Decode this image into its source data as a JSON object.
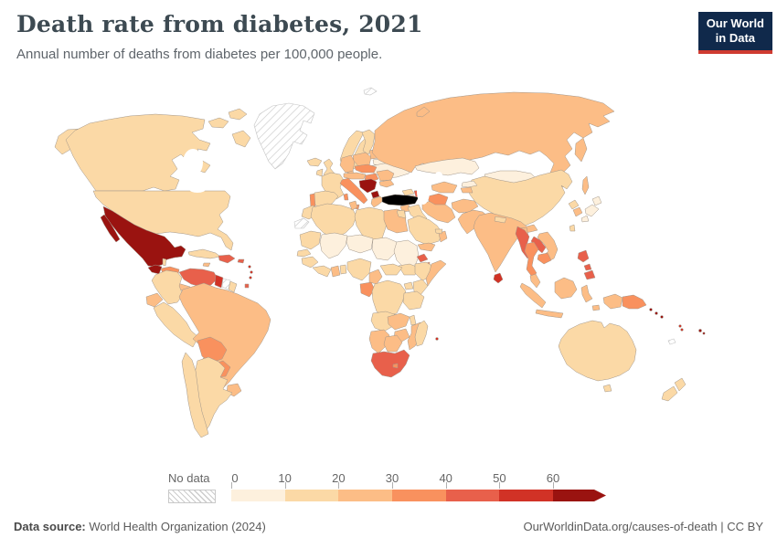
{
  "header": {
    "title": "Death rate from diabetes, 2021",
    "subtitle": "Annual number of deaths from diabetes per 100,000 people."
  },
  "logo": {
    "line1": "Our World",
    "line2": "in Data",
    "bg_color": "#10294b",
    "accent_color": "#cf3b31"
  },
  "legend": {
    "no_data_label": "No data",
    "ticks": [
      "0",
      "10",
      "20",
      "30",
      "40",
      "50",
      "60"
    ],
    "buckets": [
      {
        "range": "0-10",
        "color": "#fdf0dd"
      },
      {
        "range": "10-20",
        "color": "#fbd9a6"
      },
      {
        "range": "20-30",
        "color": "#fcbd86"
      },
      {
        "range": "30-40",
        "color": "#f9915e"
      },
      {
        "range": "40-50",
        "color": "#e8604b"
      },
      {
        "range": "50-60",
        "color": "#d13226"
      },
      {
        "range": "60+",
        "color": "#9a1310"
      }
    ]
  },
  "footer": {
    "source_label": "Data source:",
    "source_text": " World Health Organization (2024)",
    "right_text": "OurWorldinData.org/causes-of-death | CC BY"
  },
  "chart_data": {
    "type": "choropleth",
    "title": "Death rate from diabetes, 2021",
    "unit": "deaths per 100,000 people",
    "year": 2021,
    "legend_buckets": [
      "0-10",
      "10-20",
      "20-30",
      "30-40",
      "40-50",
      "50-60",
      "60+"
    ],
    "regions": [
      {
        "id": "canada",
        "name": "Canada",
        "bucket": "10-20"
      },
      {
        "id": "usa",
        "name": "United States",
        "bucket": "10-20"
      },
      {
        "id": "greenland",
        "name": "Greenland",
        "bucket": "no-data"
      },
      {
        "id": "iceland",
        "name": "Iceland",
        "bucket": "10-20"
      },
      {
        "id": "mexico",
        "name": "Mexico",
        "bucket": "60+"
      },
      {
        "id": "guatemala",
        "name": "Guatemala",
        "bucket": "60+"
      },
      {
        "id": "belize",
        "name": "Belize",
        "bucket": "10-20"
      },
      {
        "id": "honduras-nicaragua",
        "name": "Honduras & Nicaragua",
        "bucket": "30-40"
      },
      {
        "id": "costa-panama",
        "name": "Costa Rica & Panama",
        "bucket": "20-30"
      },
      {
        "id": "cuba",
        "name": "Cuba",
        "bucket": "10-20"
      },
      {
        "id": "jamaica",
        "name": "Jamaica",
        "bucket": "20-30"
      },
      {
        "id": "hispaniola",
        "name": "Haiti & Dominican Republic",
        "bucket": "40-50"
      },
      {
        "id": "puerto-rico",
        "name": "Puerto Rico",
        "bucket": "40-50"
      },
      {
        "id": "lesser-antilles",
        "name": "Lesser Antilles",
        "bucket": "50-60"
      },
      {
        "id": "trinidad",
        "name": "Trinidad and Tobago",
        "bucket": "40-50"
      },
      {
        "id": "colombia",
        "name": "Colombia",
        "bucket": "10-20"
      },
      {
        "id": "venezuela",
        "name": "Venezuela",
        "bucket": "40-50"
      },
      {
        "id": "guyana",
        "name": "Guyana",
        "bucket": "50-60"
      },
      {
        "id": "suriname",
        "name": "Suriname",
        "bucket": "no-data"
      },
      {
        "id": "french-guiana",
        "name": "French Guiana",
        "bucket": "10-20"
      },
      {
        "id": "ecuador",
        "name": "Ecuador",
        "bucket": "20-30"
      },
      {
        "id": "peru",
        "name": "Peru",
        "bucket": "10-20"
      },
      {
        "id": "brazil",
        "name": "Brazil",
        "bucket": "20-30"
      },
      {
        "id": "bolivia",
        "name": "Bolivia",
        "bucket": "30-40"
      },
      {
        "id": "paraguay",
        "name": "Paraguay",
        "bucket": "30-40"
      },
      {
        "id": "uruguay",
        "name": "Uruguay",
        "bucket": "20-30"
      },
      {
        "id": "chile",
        "name": "Chile",
        "bucket": "10-20"
      },
      {
        "id": "argentina",
        "name": "Argentina",
        "bucket": "10-20"
      },
      {
        "id": "uk",
        "name": "United Kingdom",
        "bucket": "10-20"
      },
      {
        "id": "ireland",
        "name": "Ireland",
        "bucket": "10-20"
      },
      {
        "id": "norway",
        "name": "Norway",
        "bucket": "10-20"
      },
      {
        "id": "sweden",
        "name": "Sweden",
        "bucket": "10-20"
      },
      {
        "id": "finland",
        "name": "Finland",
        "bucket": "10-20"
      },
      {
        "id": "denmark",
        "name": "Denmark",
        "bucket": "20-30"
      },
      {
        "id": "france",
        "name": "France",
        "bucket": "10-20"
      },
      {
        "id": "spain",
        "name": "Spain",
        "bucket": "10-20"
      },
      {
        "id": "portugal",
        "name": "Portugal",
        "bucket": "30-40"
      },
      {
        "id": "germany",
        "name": "Germany",
        "bucket": "20-30"
      },
      {
        "id": "poland",
        "name": "Poland",
        "bucket": "20-30"
      },
      {
        "id": "baltics",
        "name": "Baltic states",
        "bucket": "20-30"
      },
      {
        "id": "belarus",
        "name": "Belarus",
        "bucket": "0-10"
      },
      {
        "id": "ukraine",
        "name": "Ukraine",
        "bucket": "0-10"
      },
      {
        "id": "czech-slovakia",
        "name": "Czechia & Slovakia",
        "bucket": "30-40"
      },
      {
        "id": "austria-switzerland",
        "name": "Austria & Switzerland",
        "bucket": "20-30"
      },
      {
        "id": "hungary",
        "name": "Hungary",
        "bucket": "30-40"
      },
      {
        "id": "romania",
        "name": "Romania",
        "bucket": "20-30"
      },
      {
        "id": "bulgaria",
        "name": "Bulgaria",
        "bucket": "20-30"
      },
      {
        "id": "croatia-serbia",
        "name": "Croatia, Bosnia & Serbia",
        "bucket": "60+"
      },
      {
        "id": "albania-macedonia",
        "name": "Albania & North Macedonia",
        "bucket": "60+"
      },
      {
        "id": "greece",
        "name": "Greece",
        "bucket": "20-30"
      },
      {
        "id": "italy",
        "name": "Italy",
        "bucket": "30-40"
      },
      {
        "id": "svalbard",
        "name": "Svalbard",
        "bucket": "no-data"
      },
      {
        "id": "morocco",
        "name": "Morocco",
        "bucket": "10-20"
      },
      {
        "id": "western-sahara",
        "name": "Western Sahara",
        "bucket": "no-data"
      },
      {
        "id": "algeria",
        "name": "Algeria",
        "bucket": "10-20"
      },
      {
        "id": "tunisia",
        "name": "Tunisia",
        "bucket": "20-30"
      },
      {
        "id": "libya",
        "name": "Libya",
        "bucket": "10-20"
      },
      {
        "id": "egypt",
        "name": "Egypt",
        "bucket": "20-30"
      },
      {
        "id": "mauritania",
        "name": "Mauritania",
        "bucket": "10-20"
      },
      {
        "id": "mali",
        "name": "Mali",
        "bucket": "0-10"
      },
      {
        "id": "niger",
        "name": "Niger",
        "bucket": "0-10"
      },
      {
        "id": "chad",
        "name": "Chad",
        "bucket": "0-10"
      },
      {
        "id": "sudan",
        "name": "Sudan",
        "bucket": "0-10"
      },
      {
        "id": "south-sudan",
        "name": "South Sudan",
        "bucket": "10-20"
      },
      {
        "id": "eritrea",
        "name": "Eritrea",
        "bucket": "40-50"
      },
      {
        "id": "djibouti",
        "name": "Djibouti",
        "bucket": "30-40"
      },
      {
        "id": "ethiopia",
        "name": "Ethiopia",
        "bucket": "10-20"
      },
      {
        "id": "somalia",
        "name": "Somalia",
        "bucket": "20-30"
      },
      {
        "id": "senegal",
        "name": "Senegal & Gambia",
        "bucket": "10-20"
      },
      {
        "id": "guinea",
        "name": "Guinea",
        "bucket": "10-20"
      },
      {
        "id": "liberia-ivory",
        "name": "Liberia & Cote d'Ivoire",
        "bucket": "10-20"
      },
      {
        "id": "ghana",
        "name": "Ghana",
        "bucket": "20-30"
      },
      {
        "id": "togo-benin",
        "name": "Togo & Benin",
        "bucket": "10-20"
      },
      {
        "id": "nigeria",
        "name": "Nigeria",
        "bucket": "10-20"
      },
      {
        "id": "cameroon",
        "name": "Cameroon",
        "bucket": "20-30"
      },
      {
        "id": "car",
        "name": "Central African Republic",
        "bucket": "10-20"
      },
      {
        "id": "gabon-congo",
        "name": "Gabon & Congo",
        "bucket": "30-40"
      },
      {
        "id": "drc",
        "name": "Democratic Republic of Congo",
        "bucket": "10-20"
      },
      {
        "id": "uganda",
        "name": "Uganda",
        "bucket": "10-20"
      },
      {
        "id": "kenya",
        "name": "Kenya",
        "bucket": "10-20"
      },
      {
        "id": "tanzania",
        "name": "Tanzania",
        "bucket": "10-20"
      },
      {
        "id": "angola",
        "name": "Angola",
        "bucket": "10-20"
      },
      {
        "id": "zambia",
        "name": "Zambia",
        "bucket": "20-30"
      },
      {
        "id": "malawi",
        "name": "Malawi",
        "bucket": "10-20"
      },
      {
        "id": "mozambique",
        "name": "Mozambique",
        "bucket": "20-30"
      },
      {
        "id": "zimbabwe",
        "name": "Zimbabwe",
        "bucket": "20-30"
      },
      {
        "id": "namibia",
        "name": "Namibia",
        "bucket": "20-30"
      },
      {
        "id": "botswana",
        "name": "Botswana",
        "bucket": "20-30"
      },
      {
        "id": "south-africa",
        "name": "South Africa",
        "bucket": "40-50"
      },
      {
        "id": "lesotho",
        "name": "Lesotho",
        "bucket": "30-40"
      },
      {
        "id": "madagascar",
        "name": "Madagascar",
        "bucket": "10-20"
      },
      {
        "id": "mauritius",
        "name": "Mauritius",
        "bucket": "50-60"
      },
      {
        "id": "russia",
        "name": "Russia",
        "bucket": "20-30"
      },
      {
        "id": "kazakhstan",
        "name": "Kazakhstan",
        "bucket": "0-10"
      },
      {
        "id": "mongolia",
        "name": "Mongolia",
        "bucket": "0-10"
      },
      {
        "id": "china",
        "name": "China",
        "bucket": "10-20"
      },
      {
        "id": "taiwan",
        "name": "Taiwan",
        "bucket": "10-20"
      },
      {
        "id": "north-korea",
        "name": "North Korea",
        "bucket": "10-20"
      },
      {
        "id": "south-korea",
        "name": "South Korea",
        "bucket": "20-30"
      },
      {
        "id": "japan",
        "name": "Japan",
        "bucket": "0-10"
      },
      {
        "id": "georgia",
        "name": "Georgia",
        "bucket": "10-20"
      },
      {
        "id": "armenia",
        "name": "Armenia",
        "bucket": "20-30"
      },
      {
        "id": "azerbaijan",
        "name": "Azerbaijan",
        "bucket": "40-50"
      },
      {
        "id": "syria",
        "name": "Syria",
        "bucket": "20-30"
      },
      {
        "id": "israel-jordan",
        "name": "Israel & Jordan",
        "bucket": "10-20"
      },
      {
        "id": "iraq",
        "name": "Iraq",
        "bucket": "10-20"
      },
      {
        "id": "iran",
        "name": "Iran",
        "bucket": "20-30"
      },
      {
        "id": "saudi-arabia",
        "name": "Saudi Arabia",
        "bucket": "10-20"
      },
      {
        "id": "yemen",
        "name": "Yemen",
        "bucket": "20-30"
      },
      {
        "id": "oman",
        "name": "Oman",
        "bucket": "20-30"
      },
      {
        "id": "uae",
        "name": "United Arab Emirates",
        "bucket": "10-20"
      },
      {
        "id": "turkmenistan",
        "name": "Turkmenistan",
        "bucket": "30-40"
      },
      {
        "id": "uzbekistan",
        "name": "Uzbekistan",
        "bucket": "20-30"
      },
      {
        "id": "kyrgyzstan",
        "name": "Kyrgyzstan",
        "bucket": "0-10"
      },
      {
        "id": "tajikistan",
        "name": "Tajikistan",
        "bucket": "20-30"
      },
      {
        "id": "afghanistan",
        "name": "Afghanistan",
        "bucket": "20-30"
      },
      {
        "id": "pakistan",
        "name": "Pakistan",
        "bucket": "20-30"
      },
      {
        "id": "india",
        "name": "India",
        "bucket": "20-30"
      },
      {
        "id": "nepal",
        "name": "Nepal",
        "bucket": "10-20"
      },
      {
        "id": "bangladesh",
        "name": "Bangladesh",
        "bucket": "20-30"
      },
      {
        "id": "sri-lanka",
        "name": "Sri Lanka",
        "bucket": "50-60"
      },
      {
        "id": "myanmar",
        "name": "Myanmar",
        "bucket": "40-50"
      },
      {
        "id": "thailand",
        "name": "Thailand",
        "bucket": "30-40"
      },
      {
        "id": "laos",
        "name": "Laos",
        "bucket": "40-50"
      },
      {
        "id": "vietnam",
        "name": "Vietnam",
        "bucket": "20-30"
      },
      {
        "id": "cambodia",
        "name": "Cambodia",
        "bucket": "30-40"
      },
      {
        "id": "malaysia",
        "name": "Malaysia",
        "bucket": "20-30"
      },
      {
        "id": "indonesia",
        "name": "Indonesia",
        "bucket": "20-30"
      },
      {
        "id": "borneo",
        "name": "Borneo (Indonesia & Malaysia)",
        "bucket": "20-30"
      },
      {
        "id": "philippines",
        "name": "Philippines",
        "bucket": "40-50"
      },
      {
        "id": "png",
        "name": "Papua New Guinea",
        "bucket": "30-40"
      },
      {
        "id": "australia",
        "name": "Australia",
        "bucket": "10-20"
      },
      {
        "id": "new-zealand",
        "name": "New Zealand",
        "bucket": "10-20"
      },
      {
        "id": "solomon",
        "name": "Solomon Islands",
        "bucket": "60+"
      },
      {
        "id": "vanuatu",
        "name": "Vanuatu",
        "bucket": "50-60"
      },
      {
        "id": "fiji",
        "name": "Fiji",
        "bucket": "60+"
      },
      {
        "id": "new-caledonia",
        "name": "New Caledonia",
        "bucket": "no-data"
      }
    ]
  }
}
